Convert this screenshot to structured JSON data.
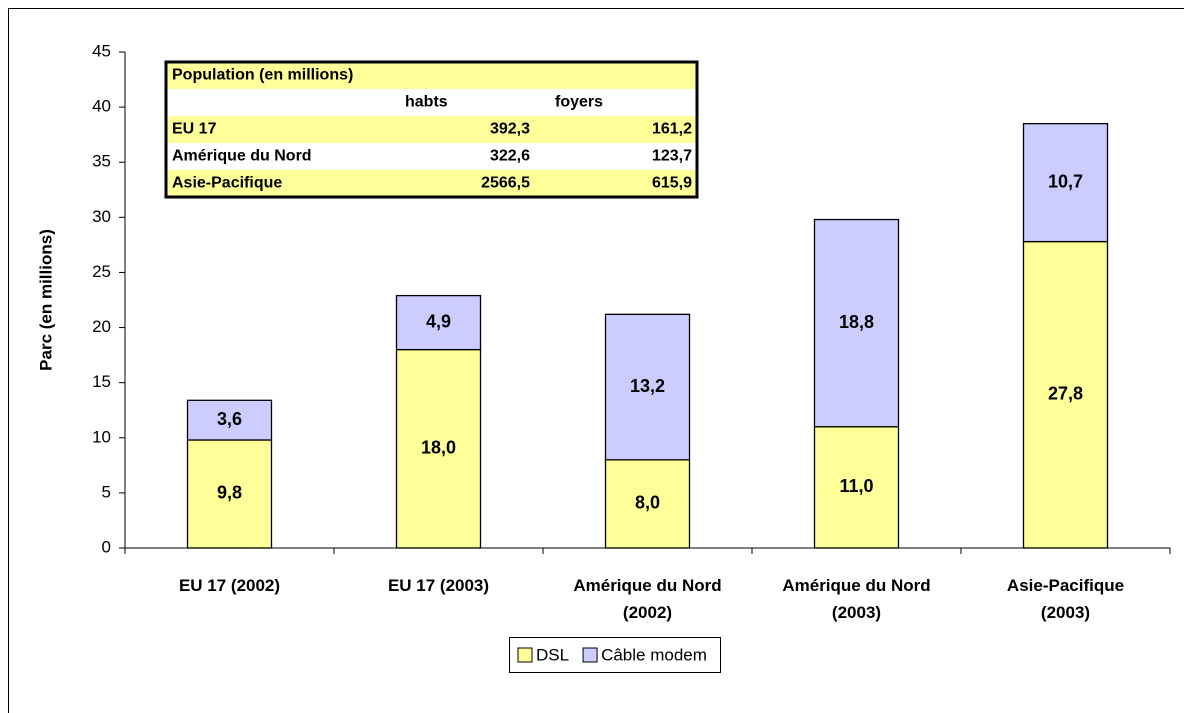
{
  "chart_data": {
    "type": "bar",
    "stacked": true,
    "y_label": "Parc (en millions)",
    "categories": [
      "EU 17 (2002)",
      "EU 17 (2003)",
      "Amérique du Nord (2002)",
      "Amérique du Nord (2003)",
      "Asie-Pacifique (2003)"
    ],
    "series": [
      {
        "name": "DSL",
        "color": "#ffff99",
        "values": [
          9.8,
          18.0,
          8.0,
          11.0,
          27.8
        ],
        "value_labels": [
          "9,8",
          "18,0",
          "8,0",
          "11,0",
          "27,8"
        ]
      },
      {
        "name": "Câble modem",
        "color": "#ccccff",
        "values": [
          3.6,
          4.9,
          13.2,
          18.8,
          10.7
        ],
        "value_labels": [
          "3,6",
          "4,9",
          "13,2",
          "18,8",
          "10,7"
        ]
      }
    ],
    "ylim": [
      0,
      45
    ],
    "yticks": [
      0,
      5,
      10,
      15,
      20,
      25,
      30,
      35,
      40,
      45
    ],
    "legend": "bottom",
    "table": {
      "title": "Population (en millions)",
      "columns": [
        "habts",
        "foyers"
      ],
      "rows": [
        [
          "EU 17",
          "392,3",
          "161,2"
        ],
        [
          "Amérique du Nord",
          "322,6",
          "123,7"
        ],
        [
          "Asie-Pacifique",
          "2566,5",
          "615,9"
        ]
      ]
    }
  }
}
